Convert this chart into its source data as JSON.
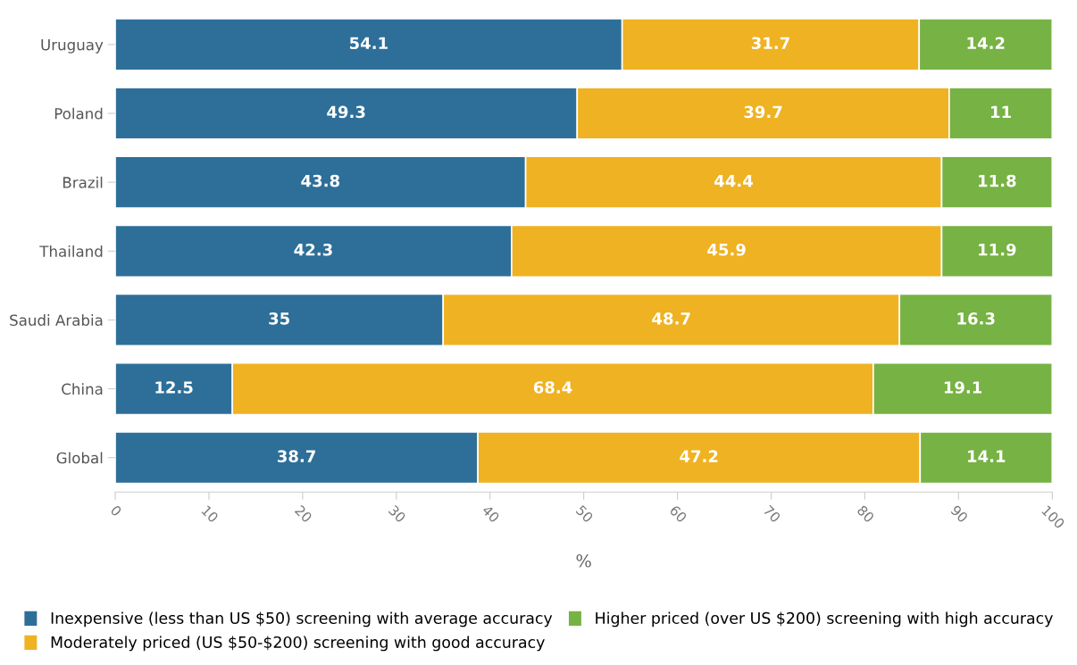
{
  "chart_data": {
    "type": "bar",
    "orientation": "horizontal",
    "stacked": true,
    "xlabel": "%",
    "categories": [
      "Uruguay",
      "Poland",
      "Brazil",
      "Thailand",
      "Saudi Arabia",
      "China",
      "Global"
    ],
    "series": [
      {
        "name": "Inexpensive (less than US $50) screening with average accuracy",
        "color": "#2e6f99",
        "values": [
          54.1,
          49.3,
          43.8,
          42.3,
          35,
          12.5,
          38.7
        ]
      },
      {
        "name": "Moderately priced (US $50-$200) screening with good accuracy",
        "color": "#efb222",
        "values": [
          31.7,
          39.7,
          44.4,
          45.9,
          48.7,
          68.4,
          47.2
        ]
      },
      {
        "name": "Higher priced (over US $200) screening with high accuracy",
        "color": "#77b244",
        "values": [
          14.2,
          11,
          11.8,
          11.9,
          16.3,
          19.1,
          14.1
        ]
      }
    ],
    "xlim": [
      0,
      100
    ],
    "xticks": [
      0,
      10,
      20,
      30,
      40,
      50,
      60,
      70,
      80,
      90,
      100
    ],
    "data_labels": true,
    "legend": "bottom",
    "grid": false
  }
}
